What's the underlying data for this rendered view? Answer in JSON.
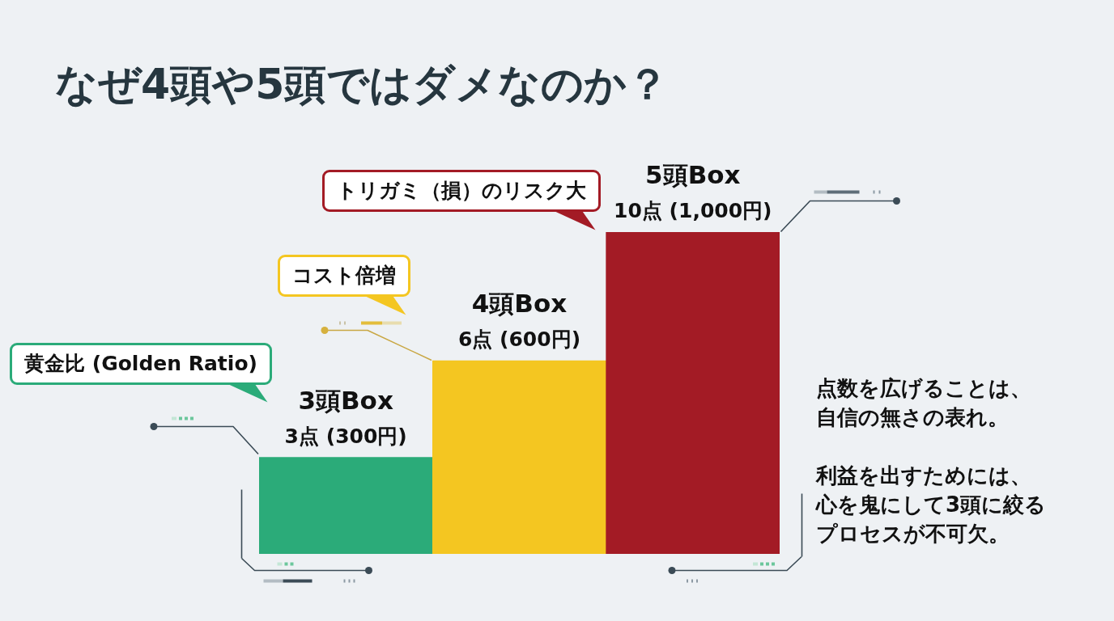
{
  "chart_data": {
    "type": "bar",
    "title": "なぜ4頭や5頭ではダメなのか？",
    "categories": [
      "3頭Box",
      "4頭Box",
      "5頭Box"
    ],
    "values": [
      3,
      6,
      10
    ],
    "colors": [
      "#2bab79",
      "#f4c621",
      "#a31b25"
    ],
    "value_labels": [
      "3点 (300円)",
      "6点 (600円)",
      "10点 (1,000円)"
    ],
    "annotations": [
      "黄金比 (Golden Ratio)",
      "コスト倍増",
      "トリガミ（損）のリスク大",
      "点数を広げることは、自信の無さの表れ。",
      "利益を出すためには、心を鬼にして3頭に絞るプロセスが不可欠。"
    ]
  }
}
